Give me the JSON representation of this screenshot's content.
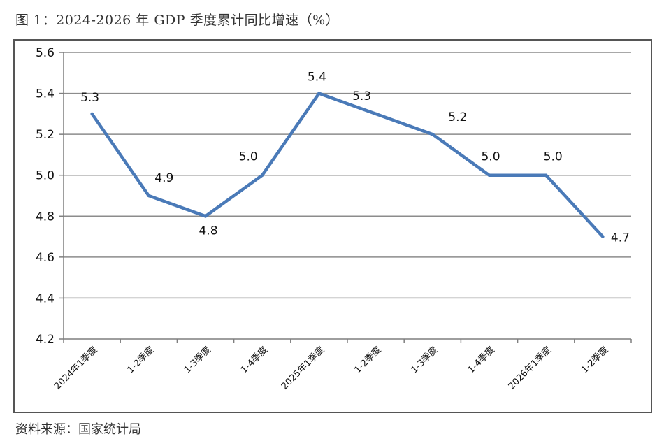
{
  "figure": {
    "title": "图 1：2024-2026 年 GDP 季度累计同比增速（%）",
    "source": "资料来源：国家统计局"
  },
  "chart_data": {
    "type": "line",
    "title": "",
    "xlabel": "",
    "ylabel": "",
    "ylim": [
      4.2,
      5.6
    ],
    "yticks": [
      "4.2",
      "4.4",
      "4.6",
      "4.8",
      "5.0",
      "5.2",
      "5.4",
      "5.6"
    ],
    "grid": true,
    "categories": [
      "2024年1季度",
      "1-2季度",
      "1-3季度",
      "1-4季度",
      "2025年1季度",
      "1-2季度",
      "1-3季度",
      "1-4季度",
      "2026年1季度",
      "1-2季度"
    ],
    "series": [
      {
        "values": [
          5.3,
          4.9,
          4.8,
          5.0,
          5.4,
          5.3,
          5.2,
          5.0,
          5.0,
          4.7
        ],
        "labels": [
          "5.3",
          "4.9",
          "4.8",
          "5.0",
          "5.4",
          "5.3",
          "5.2",
          "5.0",
          "5.0",
          "4.7"
        ],
        "color": "#4a7ab8"
      }
    ],
    "colors": {
      "line": "#4a7ab8",
      "grid": "#8c8c8c",
      "axis": "#7f7f7f"
    }
  }
}
